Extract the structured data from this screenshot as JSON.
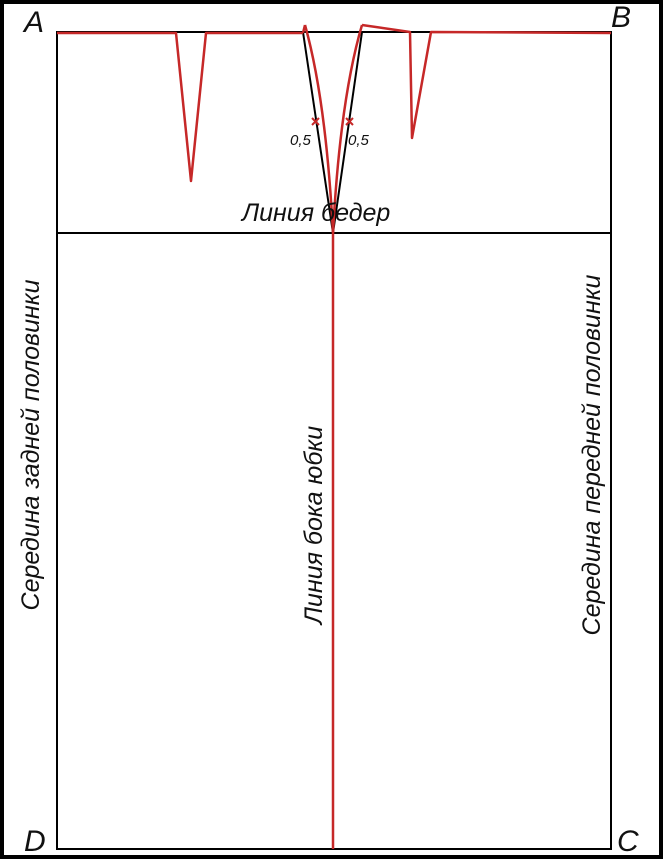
{
  "diagram": {
    "corners": {
      "a": "A",
      "b": "B",
      "c": "C",
      "d": "D"
    },
    "labels": {
      "hip_line": "Линия бедер",
      "side_seam": "Линия бока юбки",
      "back_center": "Середина задней половинки",
      "front_center": "Середина передней половинки",
      "offset_left": "0,5",
      "offset_right": "0,5"
    },
    "colors": {
      "frame": "#000000",
      "pattern_line": "#c62828",
      "text": "#111111"
    }
  }
}
